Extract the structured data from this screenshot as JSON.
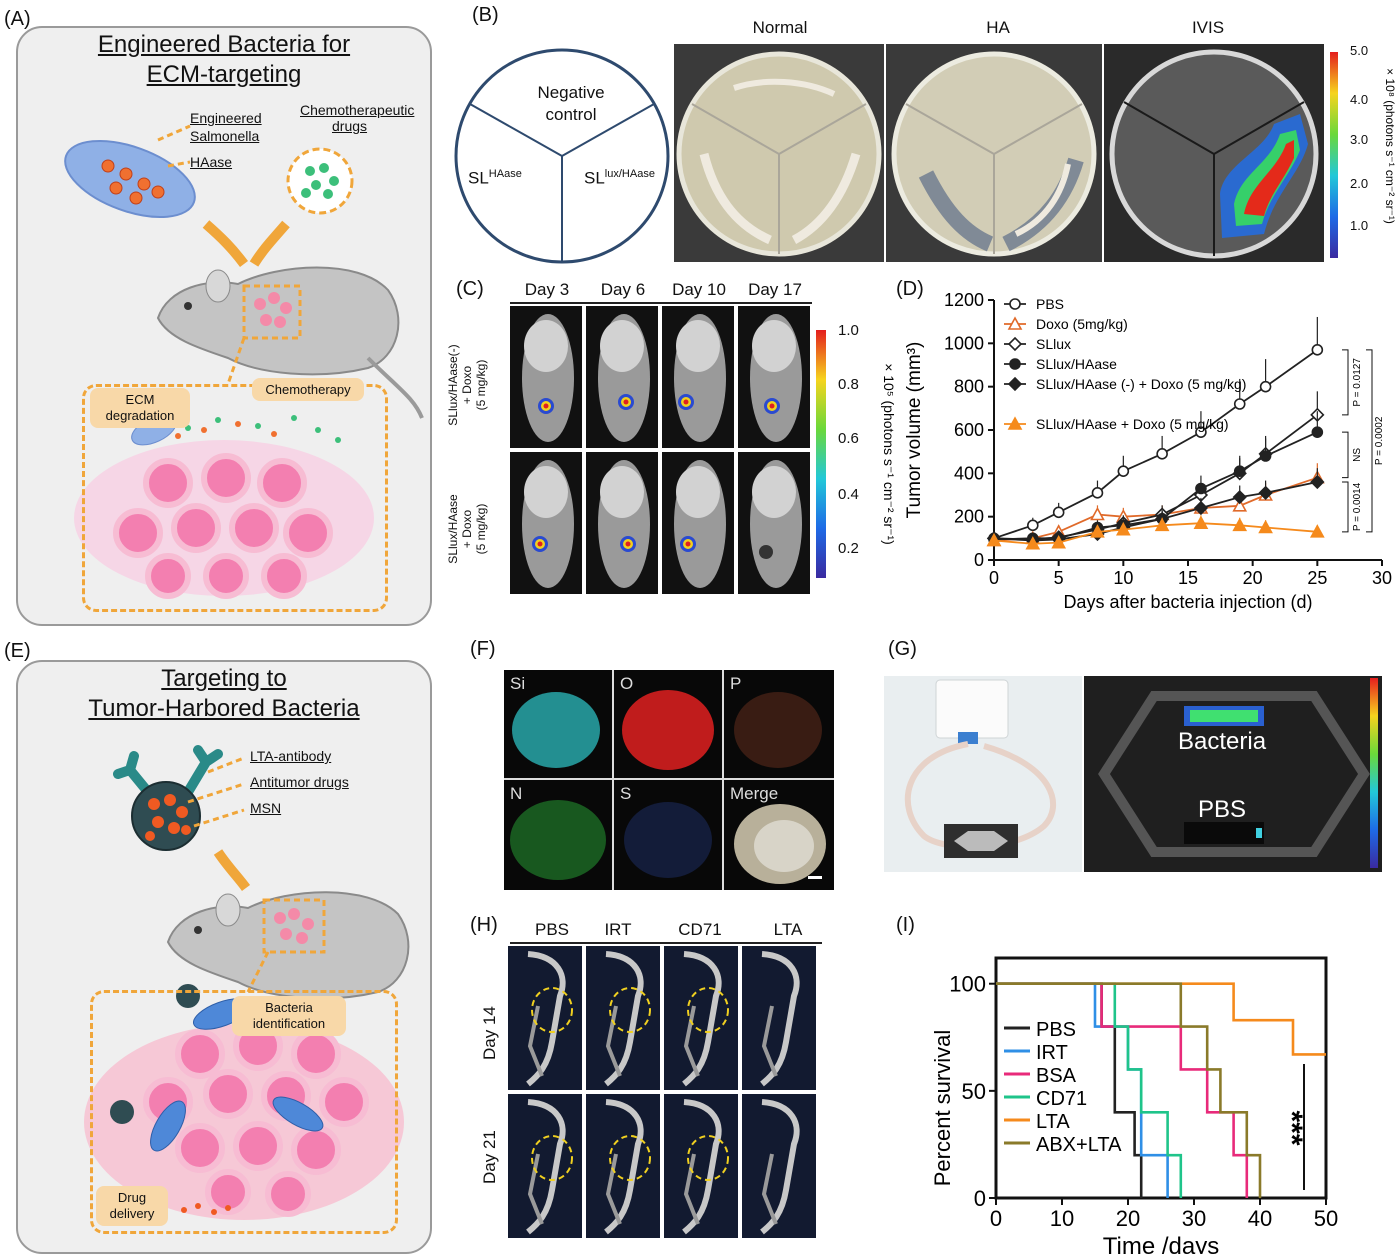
{
  "panels": {
    "A": "(A)",
    "B": "(B)",
    "C": "(C)",
    "D": "(D)",
    "E": "(E)",
    "F": "(F)",
    "G": "(G)",
    "H": "(H)",
    "I": "(I)"
  },
  "A": {
    "title_line1": "Engineered Bacteria for",
    "title_line2": "ECM-targeting",
    "engineered": "Engineered",
    "salmonella": "Salmonella",
    "haase": "HAase",
    "chemo_line1": "Chemotherapeutic",
    "chemo_line2": "drugs",
    "ecm_line1": "ECM",
    "ecm_line2": "degradation",
    "chemotherapy": "Chemotherapy"
  },
  "B": {
    "cols": [
      "Normal",
      "HA",
      "IVIS"
    ],
    "neg_line1": "Negative",
    "neg_line2": "control",
    "sl": "SL",
    "sl_haase_sup": "HAase",
    "sl_lux_sup": "lux/HAase",
    "cbar_ticks": [
      "5.0",
      "4.0",
      "3.0",
      "2.0",
      "1.0"
    ],
    "cbar_label": "× 10⁸ (photons s⁻¹ cm⁻² sr⁻¹)"
  },
  "C": {
    "days": [
      "Day 3",
      "Day 6",
      "Day 10",
      "Day 17"
    ],
    "row1": [
      "SLlux/HAase(-)",
      "+ Doxo",
      "(5 mg/kg)"
    ],
    "row2": [
      "SLlux/HAase",
      "+ Doxo",
      "(5 mg/kg)"
    ],
    "cbar_ticks": [
      "1.0",
      "0.8",
      "0.6",
      "0.4",
      "0.2"
    ],
    "cbar_label": "× 10⁵ (photons s⁻¹ cm⁻² sr⁻¹)"
  },
  "E": {
    "title_line1": "Targeting to",
    "title_line2": "Tumor-Harbored Bacteria",
    "lta_antibody": "LTA-antibody",
    "antitumor": "Antitumor drugs",
    "msn": "MSN",
    "bact_line1": "Bacteria",
    "bact_line2": "identification",
    "drug_line1": "Drug",
    "drug_line2": "delivery"
  },
  "F": {
    "maps": [
      "Si",
      "O",
      "P",
      "N",
      "S",
      "Merge"
    ]
  },
  "G": {
    "bacteria": "Bacteria",
    "pbs": "PBS"
  },
  "H": {
    "cols": [
      "PBS",
      "IRT",
      "CD71",
      "LTA"
    ],
    "rows": [
      "Day 14",
      "Day 21"
    ]
  },
  "colors": {
    "orange_dash": "#f0a63a",
    "pbs": "#222222",
    "irt": "#2f8fe6",
    "bsa": "#e82a7a",
    "cd71": "#1fc48a",
    "lta": "#f58a1c",
    "abx": "#8a7a2a",
    "doxo": "#e06a2a"
  },
  "chart_data": [
    {
      "type": "line",
      "panel": "D",
      "xlabel": "Days after bacteria injection (d)",
      "ylabel": "Tumor volume (mm³)",
      "xlim": [
        0,
        30
      ],
      "ylim": [
        0,
        1200
      ],
      "xticks": [
        "0",
        "5",
        "10",
        "15",
        "20",
        "25",
        "30"
      ],
      "yticks": [
        "0",
        "200",
        "400",
        "600",
        "800",
        "1000",
        "1200"
      ],
      "series": [
        {
          "name": "PBS",
          "x": [
            0,
            3,
            5,
            8,
            10,
            13,
            16,
            19,
            21,
            25
          ],
          "y": [
            100,
            160,
            220,
            310,
            410,
            490,
            590,
            720,
            800,
            970
          ]
        },
        {
          "name": "Doxo (5mg/kg)",
          "x": [
            0,
            3,
            5,
            8,
            10,
            13,
            16,
            19,
            21,
            25
          ],
          "y": [
            90,
            100,
            130,
            210,
            200,
            210,
            240,
            250,
            300,
            380
          ]
        },
        {
          "name": "SLlux",
          "x": [
            0,
            3,
            5,
            8,
            10,
            13,
            16,
            19,
            21,
            25
          ],
          "y": [
            100,
            95,
            105,
            140,
            170,
            210,
            300,
            400,
            490,
            670
          ]
        },
        {
          "name": "SLlux/HAase",
          "x": [
            0,
            3,
            5,
            8,
            10,
            13,
            16,
            19,
            21,
            25
          ],
          "y": [
            95,
            100,
            100,
            150,
            160,
            190,
            330,
            410,
            480,
            590
          ]
        },
        {
          "name": "SLlux/HAase (-) + Doxo (5 mg/kg)",
          "x": [
            0,
            3,
            5,
            8,
            10,
            13,
            16,
            19,
            21,
            25
          ],
          "y": [
            100,
            90,
            95,
            120,
            150,
            190,
            240,
            290,
            310,
            360
          ]
        },
        {
          "name": "SLlux/HAase + Doxo (5 mg/kg)",
          "x": [
            0,
            3,
            5,
            8,
            10,
            13,
            16,
            19,
            21,
            25
          ],
          "y": [
            90,
            75,
            80,
            130,
            140,
            160,
            170,
            160,
            150,
            130
          ]
        }
      ],
      "annotations": [
        "P = 0.0127",
        "P = 0.0002",
        "NS",
        "P = 0.0014"
      ]
    },
    {
      "type": "line",
      "panel": "I",
      "xlabel": "Time /days",
      "ylabel": "Percent survival",
      "xlim": [
        0,
        50
      ],
      "ylim": [
        0,
        100
      ],
      "xticks": [
        "0",
        "10",
        "20",
        "30",
        "40",
        "50"
      ],
      "yticks": [
        "0",
        "50",
        "100"
      ],
      "series": [
        {
          "name": "PBS",
          "x": [
            0,
            16,
            16,
            18,
            18,
            21,
            21,
            22,
            22
          ],
          "y": [
            100,
            100,
            80,
            80,
            40,
            40,
            20,
            20,
            0
          ]
        },
        {
          "name": "IRT",
          "x": [
            0,
            15,
            15,
            20,
            20,
            22,
            22,
            24,
            24,
            26,
            26
          ],
          "y": [
            100,
            100,
            80,
            80,
            60,
            60,
            20,
            20,
            20,
            20,
            0
          ]
        },
        {
          "name": "BSA",
          "x": [
            0,
            16,
            16,
            19,
            19,
            28,
            28,
            32,
            32,
            36,
            36,
            38,
            38
          ],
          "y": [
            100,
            100,
            80,
            80,
            80,
            80,
            60,
            60,
            40,
            40,
            20,
            20,
            0
          ]
        },
        {
          "name": "CD71",
          "x": [
            0,
            18,
            18,
            20,
            20,
            22,
            22,
            26,
            26,
            28,
            28
          ],
          "y": [
            100,
            100,
            80,
            80,
            60,
            60,
            40,
            40,
            20,
            20,
            0
          ]
        },
        {
          "name": "LTA",
          "x": [
            0,
            36,
            36,
            45,
            45,
            50
          ],
          "y": [
            100,
            100,
            83,
            83,
            67,
            67
          ]
        },
        {
          "name": "ABX+LTA",
          "x": [
            0,
            20,
            20,
            28,
            28,
            32,
            32,
            34,
            34,
            38,
            38,
            40,
            40
          ],
          "y": [
            100,
            100,
            100,
            100,
            80,
            80,
            60,
            60,
            40,
            40,
            20,
            20,
            0
          ]
        }
      ],
      "significance": "***"
    }
  ]
}
